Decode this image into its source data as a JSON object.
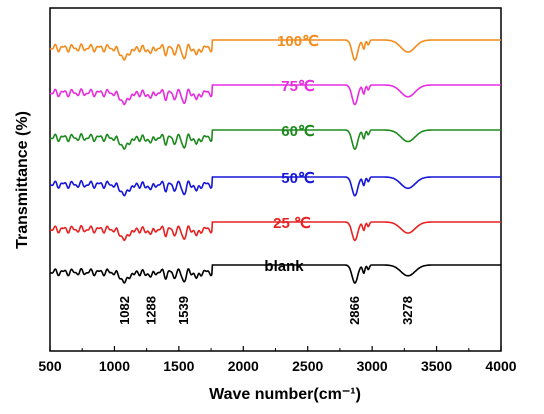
{
  "chart_data": {
    "type": "line",
    "title": "",
    "xlabel": "Wave number(cm⁻¹)",
    "ylabel": "Transmittance (%)",
    "xlim": [
      500,
      4000
    ],
    "x_ticks": [
      500,
      1000,
      1500,
      2000,
      2500,
      3000,
      3500,
      4000
    ],
    "x_tick_labels": [
      "500",
      "1000",
      "1500",
      "2000",
      "2500",
      "3000",
      "3500",
      "4000"
    ],
    "y_ticks": [],
    "grid": false,
    "legend": "inline labels next to each curve",
    "peak_labels": [
      "1082",
      "1288",
      "1539",
      "2866",
      "3278"
    ],
    "series": [
      {
        "name": "100℃",
        "color": "#f28c1c"
      },
      {
        "name": "75℃",
        "color": "#e62ee0"
      },
      {
        "name": "60℃",
        "color": "#1e8a1e"
      },
      {
        "name": "50℃",
        "color": "#1616d8"
      },
      {
        "name": "25 ℃",
        "color": "#e62222"
      },
      {
        "name": "blank",
        "color": "#000000"
      }
    ]
  }
}
